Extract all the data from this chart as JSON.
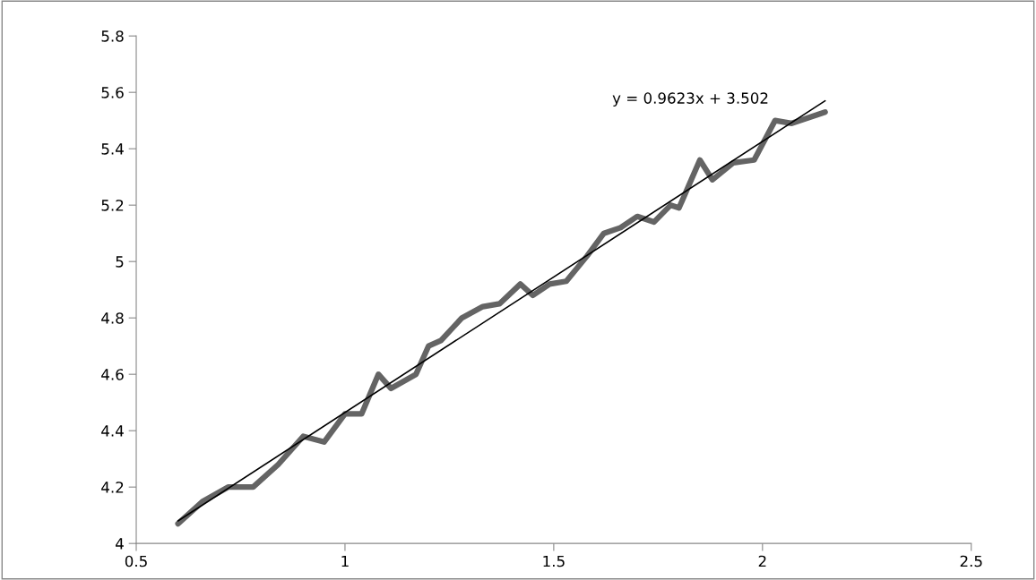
{
  "chart_data": {
    "type": "line",
    "series": [
      {
        "color": "#646464",
        "x": [
          0.6,
          0.66,
          0.72,
          0.78,
          0.84,
          0.9,
          0.95,
          1.0,
          1.04,
          1.08,
          1.11,
          1.17,
          1.2,
          1.23,
          1.28,
          1.33,
          1.37,
          1.42,
          1.45,
          1.49,
          1.53,
          1.58,
          1.62,
          1.66,
          1.7,
          1.74,
          1.78,
          1.8,
          1.85,
          1.88,
          1.93,
          1.98,
          2.03,
          2.07,
          2.15
        ],
        "values": [
          4.07,
          4.15,
          4.2,
          4.2,
          4.28,
          4.38,
          4.36,
          4.46,
          4.46,
          4.6,
          4.55,
          4.6,
          4.7,
          4.72,
          4.8,
          4.84,
          4.85,
          4.92,
          4.88,
          4.92,
          4.93,
          5.02,
          5.1,
          5.12,
          5.16,
          5.14,
          5.2,
          5.19,
          5.36,
          5.29,
          5.35,
          5.36,
          5.5,
          5.49,
          5.53
        ]
      },
      {
        "color": "#000000",
        "x": [
          0.6,
          2.15
        ],
        "values": [
          4.08,
          5.57
        ]
      }
    ],
    "annotations": [
      "y = 0.9623x + 3.502"
    ],
    "xlim": [
      0.5,
      2.5
    ],
    "xticks": [
      0.5,
      1,
      1.5,
      2,
      2.5
    ],
    "ylim": [
      4,
      5.8
    ],
    "yticks": [
      4,
      4.2,
      4.4,
      4.6,
      4.8,
      5,
      5.2,
      5.4,
      5.6,
      5.8
    ],
    "grid": false,
    "legend": false
  }
}
